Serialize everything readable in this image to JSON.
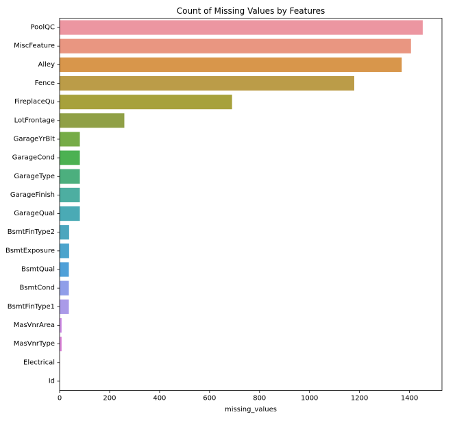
{
  "chart_data": {
    "type": "bar",
    "orientation": "horizontal",
    "title": "Count of Missing Values by Features",
    "xlabel": "missing_values",
    "ylabel": "",
    "xlim": [
      0,
      1530
    ],
    "xticks": [
      0,
      200,
      400,
      600,
      800,
      1000,
      1200,
      1400
    ],
    "grid": false,
    "categories": [
      "PoolQC",
      "MiscFeature",
      "Alley",
      "Fence",
      "FireplaceQu",
      "LotFrontage",
      "GarageYrBlt",
      "GarageCond",
      "GarageType",
      "GarageFinish",
      "GarageQual",
      "BsmtFinType2",
      "BsmtExposure",
      "BsmtQual",
      "BsmtCond",
      "BsmtFinType1",
      "MasVnrArea",
      "MasVnrType",
      "Electrical",
      "Id"
    ],
    "values": [
      1453,
      1406,
      1369,
      1179,
      690,
      259,
      81,
      81,
      81,
      81,
      81,
      38,
      38,
      37,
      37,
      37,
      8,
      8,
      1,
      0
    ],
    "colors": [
      "#ec96a1",
      "#e99681",
      "#d8964b",
      "#bb9c48",
      "#a7a13c",
      "#90a046",
      "#76ac47",
      "#4cb152",
      "#4caf7e",
      "#4daea1",
      "#4aaab5",
      "#4ca6be",
      "#4ba4cc",
      "#4fa0d8",
      "#909ee9",
      "#aa9ae8",
      "#cf8de6",
      "#dc85d9",
      "#e684c1",
      "#ea8cb0"
    ]
  }
}
